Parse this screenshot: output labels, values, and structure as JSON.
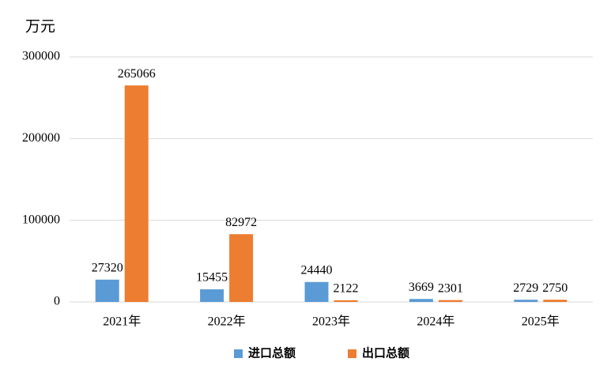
{
  "chart_data": {
    "type": "bar",
    "y_label": "万元",
    "categories": [
      "2021年",
      "2022年",
      "2023年",
      "2024年",
      "2025年"
    ],
    "series": [
      {
        "name": "进口总额",
        "color": "#5b9bd5",
        "values": [
          27320,
          15455,
          24440,
          3669,
          2729
        ]
      },
      {
        "name": "出口总额",
        "color": "#ed7d31",
        "values": [
          265066,
          82972,
          2122,
          2301,
          2750
        ]
      }
    ],
    "ylim": [
      0,
      300000
    ],
    "yticks": [
      0,
      100000,
      200000,
      300000
    ],
    "grid": true,
    "legend": "bottom"
  }
}
